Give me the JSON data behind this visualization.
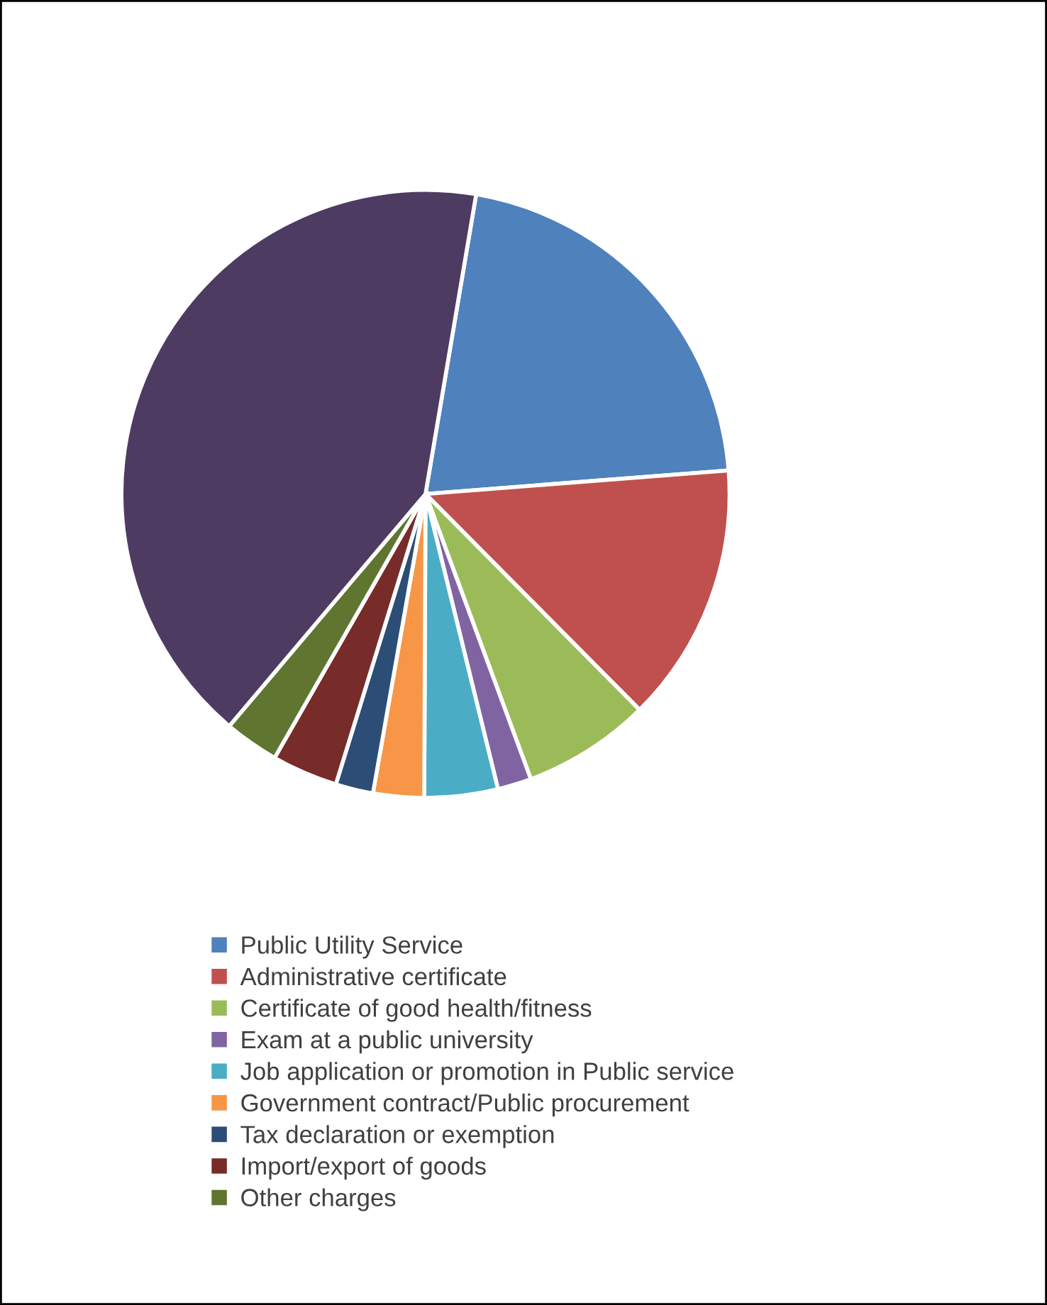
{
  "chart_data": {
    "type": "pie",
    "categories": [
      "Public Utility Service",
      "Administrative certificate",
      "Certificate of good health/fitness",
      "Exam at a public university",
      "Job application or promotion in Public service",
      "Government contract/Public procurement",
      "Tax declaration or exemption",
      "Import/export of goods",
      "Other charges",
      null
    ],
    "values": [
      21.1,
      13.8,
      6.8,
      1.8,
      3.9,
      2.7,
      2.0,
      3.5,
      2.9,
      41.5
    ],
    "colors": [
      "#4f81bd",
      "#c0504d",
      "#9bbb59",
      "#8064a2",
      "#4bacc6",
      "#f79646",
      "#2c4d75",
      "#772c2a",
      "#5f7530",
      "#4d3b62"
    ],
    "legend": "bottom"
  }
}
